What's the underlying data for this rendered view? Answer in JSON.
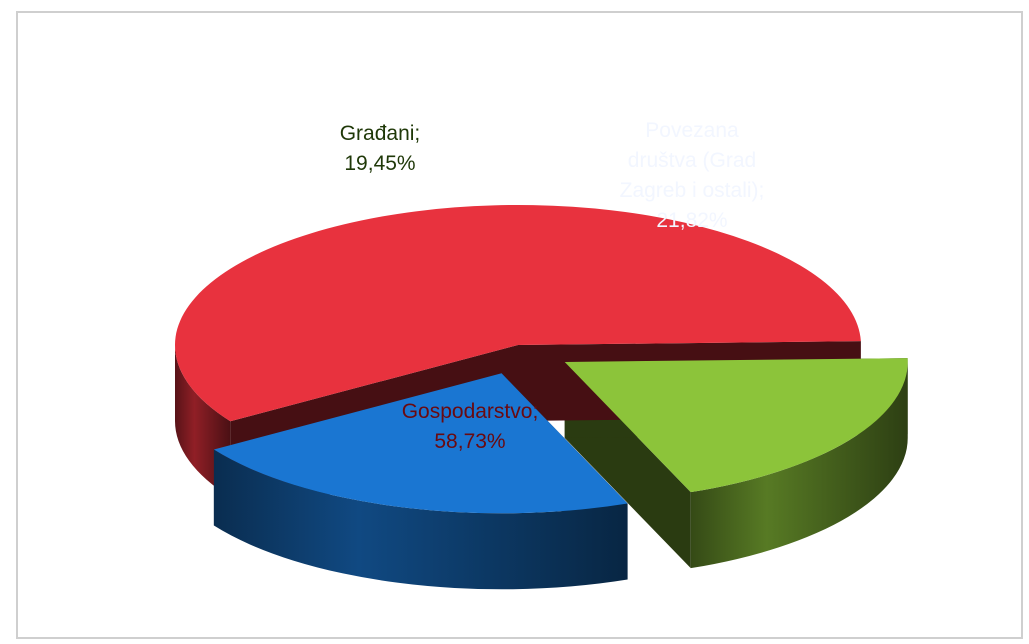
{
  "chart_data": {
    "type": "pie",
    "title": "",
    "three_d": true,
    "exploded": true,
    "slices": [
      {
        "name": "Gospodarstvo",
        "value": 58.73,
        "label_lines": [
          "Gospodarstvo;",
          "58,73%"
        ],
        "color": "#e8323e",
        "label_color": "#6a0a10"
      },
      {
        "name": "Građani",
        "value": 19.45,
        "label_lines": [
          "Građani;",
          "19,45%"
        ],
        "color": "#8cc43a",
        "label_color": "#1f3808"
      },
      {
        "name": "Povezana društva (Grad Zagreb i ostali)",
        "value": 21.82,
        "label_lines": [
          "Povezana",
          "društva (Grad",
          "Zagreb i ostali);",
          "21,82%"
        ],
        "color": "#1a76d2",
        "label_color": "#f2f6ff"
      }
    ]
  }
}
